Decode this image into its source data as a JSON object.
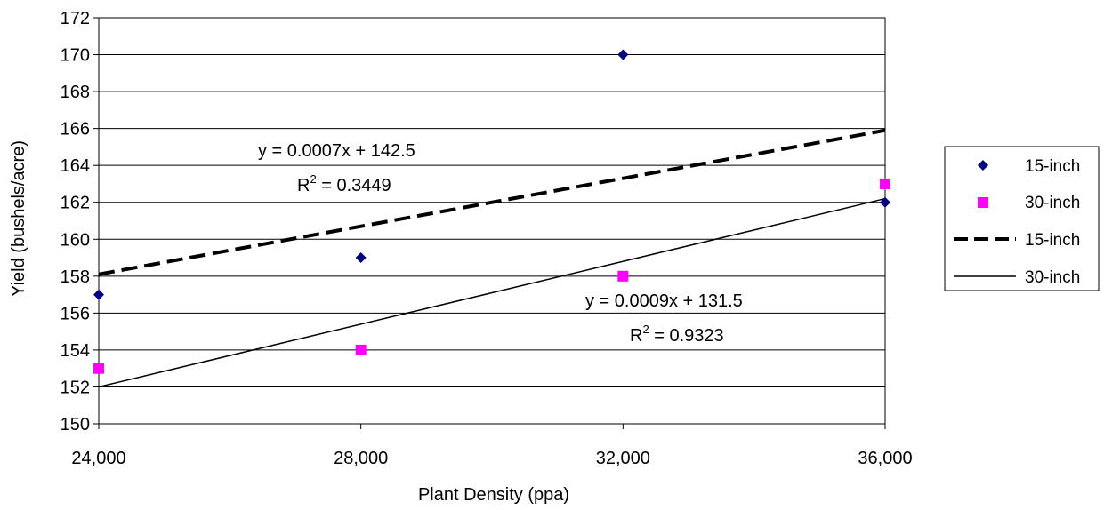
{
  "chart_data": {
    "type": "scatter",
    "xlabel": "Plant Density (ppa)",
    "ylabel": "Yield (bushels/acre)",
    "xlim": [
      24000,
      36000
    ],
    "ylim": [
      150,
      172
    ],
    "x_ticks": [
      24000,
      28000,
      32000,
      36000
    ],
    "x_tick_labels": [
      "24,000",
      "28,000",
      "32,000",
      "36,000"
    ],
    "y_ticks": [
      150,
      152,
      154,
      156,
      158,
      160,
      162,
      164,
      166,
      168,
      170,
      172
    ],
    "grid": "horizontal",
    "legend_position": "right",
    "series": [
      {
        "name": "15-inch",
        "kind": "points",
        "marker": "diamond",
        "color": "#000080",
        "x": [
          24000,
          28000,
          32000,
          36000
        ],
        "y": [
          157,
          159,
          170,
          162
        ]
      },
      {
        "name": "30-inch",
        "kind": "points",
        "marker": "square",
        "color": "#FF00FF",
        "x": [
          24000,
          28000,
          32000,
          36000
        ],
        "y": [
          153,
          154,
          158,
          163
        ]
      },
      {
        "name": "15-inch",
        "kind": "trendline",
        "style": "dashed",
        "color": "#000000",
        "x": [
          24000,
          36000
        ],
        "y": [
          158.1,
          165.9
        ]
      },
      {
        "name": "30-inch",
        "kind": "trendline",
        "style": "solid",
        "color": "#000000",
        "x": [
          24000,
          36000
        ],
        "y": [
          152.0,
          162.2
        ]
      }
    ],
    "annotations": [
      {
        "equation": "y = 0.0007x + 142.5",
        "r2_prefix": "R",
        "r2_sup": "2",
        "r2_value": " = 0.3449"
      },
      {
        "equation": "y = 0.0009x + 131.5",
        "r2_prefix": "R",
        "r2_sup": "2",
        "r2_value": " = 0.9323"
      }
    ]
  }
}
